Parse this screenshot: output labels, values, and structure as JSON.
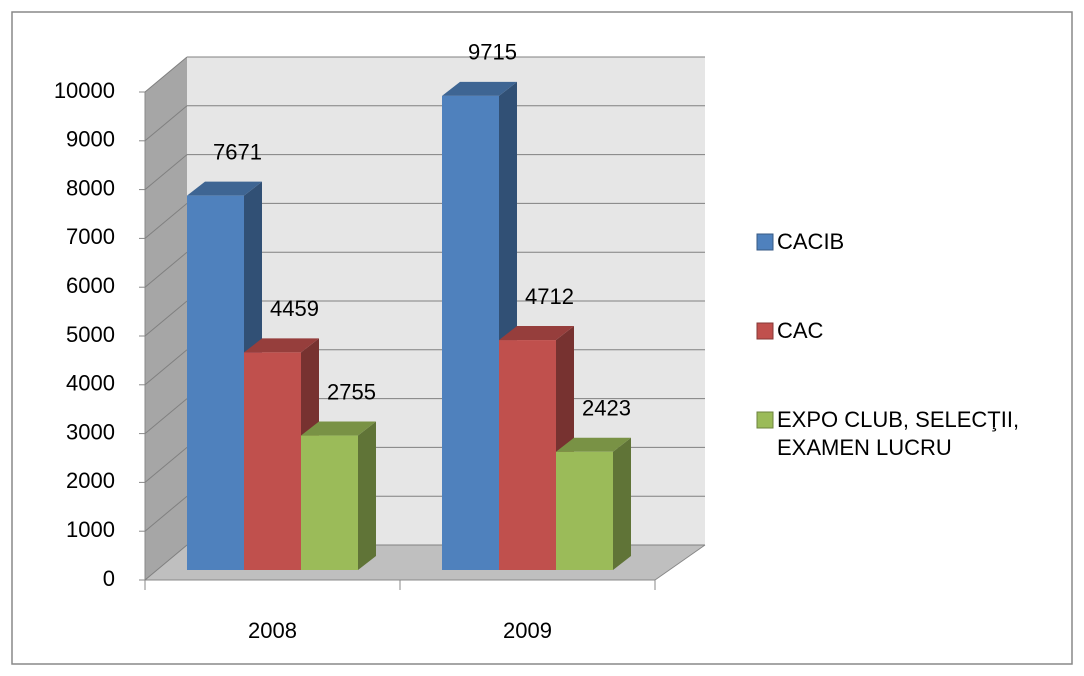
{
  "chart_data": {
    "type": "bar3d",
    "categories": [
      "2008",
      "2009"
    ],
    "series": [
      {
        "name": "CACIB",
        "color": "#4f81bd",
        "values": [
          7671,
          9715
        ]
      },
      {
        "name": "CAC",
        "color": "#c0504d",
        "values": [
          4459,
          4712
        ]
      },
      {
        "name": "EXPO CLUB, SELECŢII, EXAMEN LUCRU",
        "color": "#9bbb59",
        "values": [
          2755,
          2423
        ]
      }
    ],
    "ylim": [
      0,
      10000
    ],
    "yticks": [
      0,
      1000,
      2000,
      3000,
      4000,
      5000,
      6000,
      7000,
      8000,
      9000,
      10000
    ],
    "grid": true,
    "legend": "right"
  }
}
